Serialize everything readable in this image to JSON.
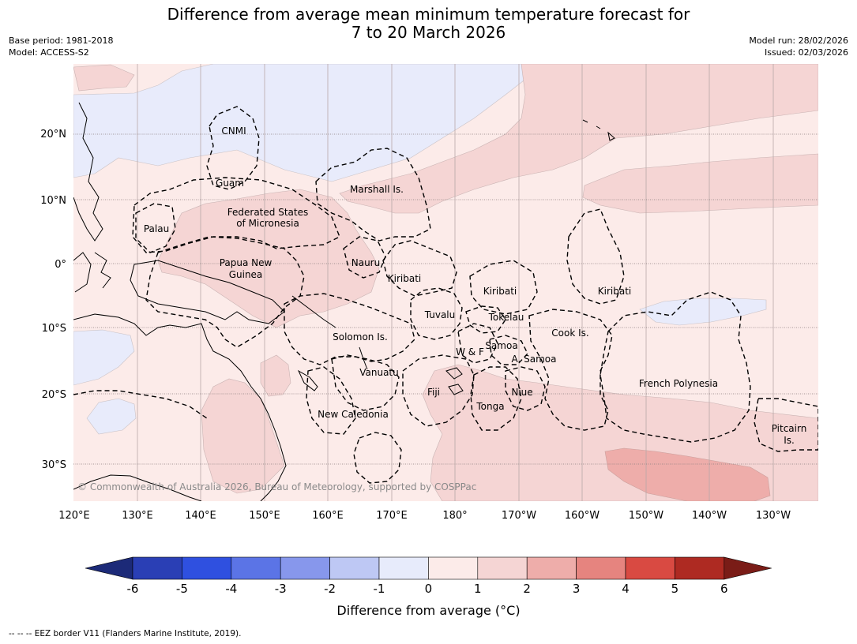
{
  "header": {
    "title_line1": "Difference from average mean minimum temperature forecast for",
    "title_line2": "7 to 20 March 2026",
    "base_period": "Base period: 1981-2018",
    "model": "Model: ACCESS-S2",
    "model_run": "Model run: 28/02/2026",
    "issued": "Issued: 02/03/2026"
  },
  "map": {
    "copyright": "© Commonwealth of Australia 2026, Bureau of Meteorology, supported by COSPPac",
    "lat_labels": [
      "20°N",
      "10°N",
      "0°",
      "10°S",
      "20°S",
      "30°S"
    ],
    "lon_labels": [
      "120°E",
      "130°E",
      "140°E",
      "150°E",
      "160°E",
      "170°E",
      "180°",
      "170°W",
      "160°W",
      "150°W",
      "140°W",
      "130°W"
    ],
    "places": {
      "cnmi": "CNMI",
      "guam": "Guam",
      "marshall": "Marshall Is.",
      "fsm1": "Federated States",
      "fsm2": "of Micronesia",
      "palau": "Palau",
      "png1": "Papua New",
      "png2": "Guinea",
      "nauru": "Nauru",
      "kiribati_w": "Kiribati",
      "kiribati_c": "Kiribati",
      "kiribati_e": "Kiribati",
      "tuvalu": "Tuvalu",
      "tokelau": "Tokelau",
      "solomon": "Solomon Is.",
      "wf": "W & F",
      "samoa": "Samoa",
      "asamoa": "A. Samoa",
      "cook": "Cook Is.",
      "vanuatu": "Vanuatu",
      "fiji": "Fiji",
      "niue": "Niue",
      "tonga": "Tonga",
      "fp": "French Polynesia",
      "newcal": "New Caledonia",
      "pitcairn1": "Pitcairn",
      "pitcairn2": "Is."
    }
  },
  "colorbar": {
    "ticks": [
      "-6",
      "-5",
      "-4",
      "-3",
      "-2",
      "-1",
      "0",
      "1",
      "2",
      "3",
      "4",
      "5",
      "6"
    ],
    "label": "Difference from average (°C)",
    "colors": {
      "below_min": "#1c2a78",
      "bins": [
        "#2a3fb5",
        "#2f50e0",
        "#5b74e6",
        "#8797ec",
        "#bec8f4",
        "#e7ebfb",
        "#fcebe9",
        "#f5d5d4",
        "#eeadaa",
        "#e6847f",
        "#d94a42",
        "#ae2a22"
      ],
      "above_max": "#7a1c17"
    }
  },
  "footer": {
    "legend": "--  --  -- EEZ border V11 (Flanders Marine Institute, 2019)."
  }
}
